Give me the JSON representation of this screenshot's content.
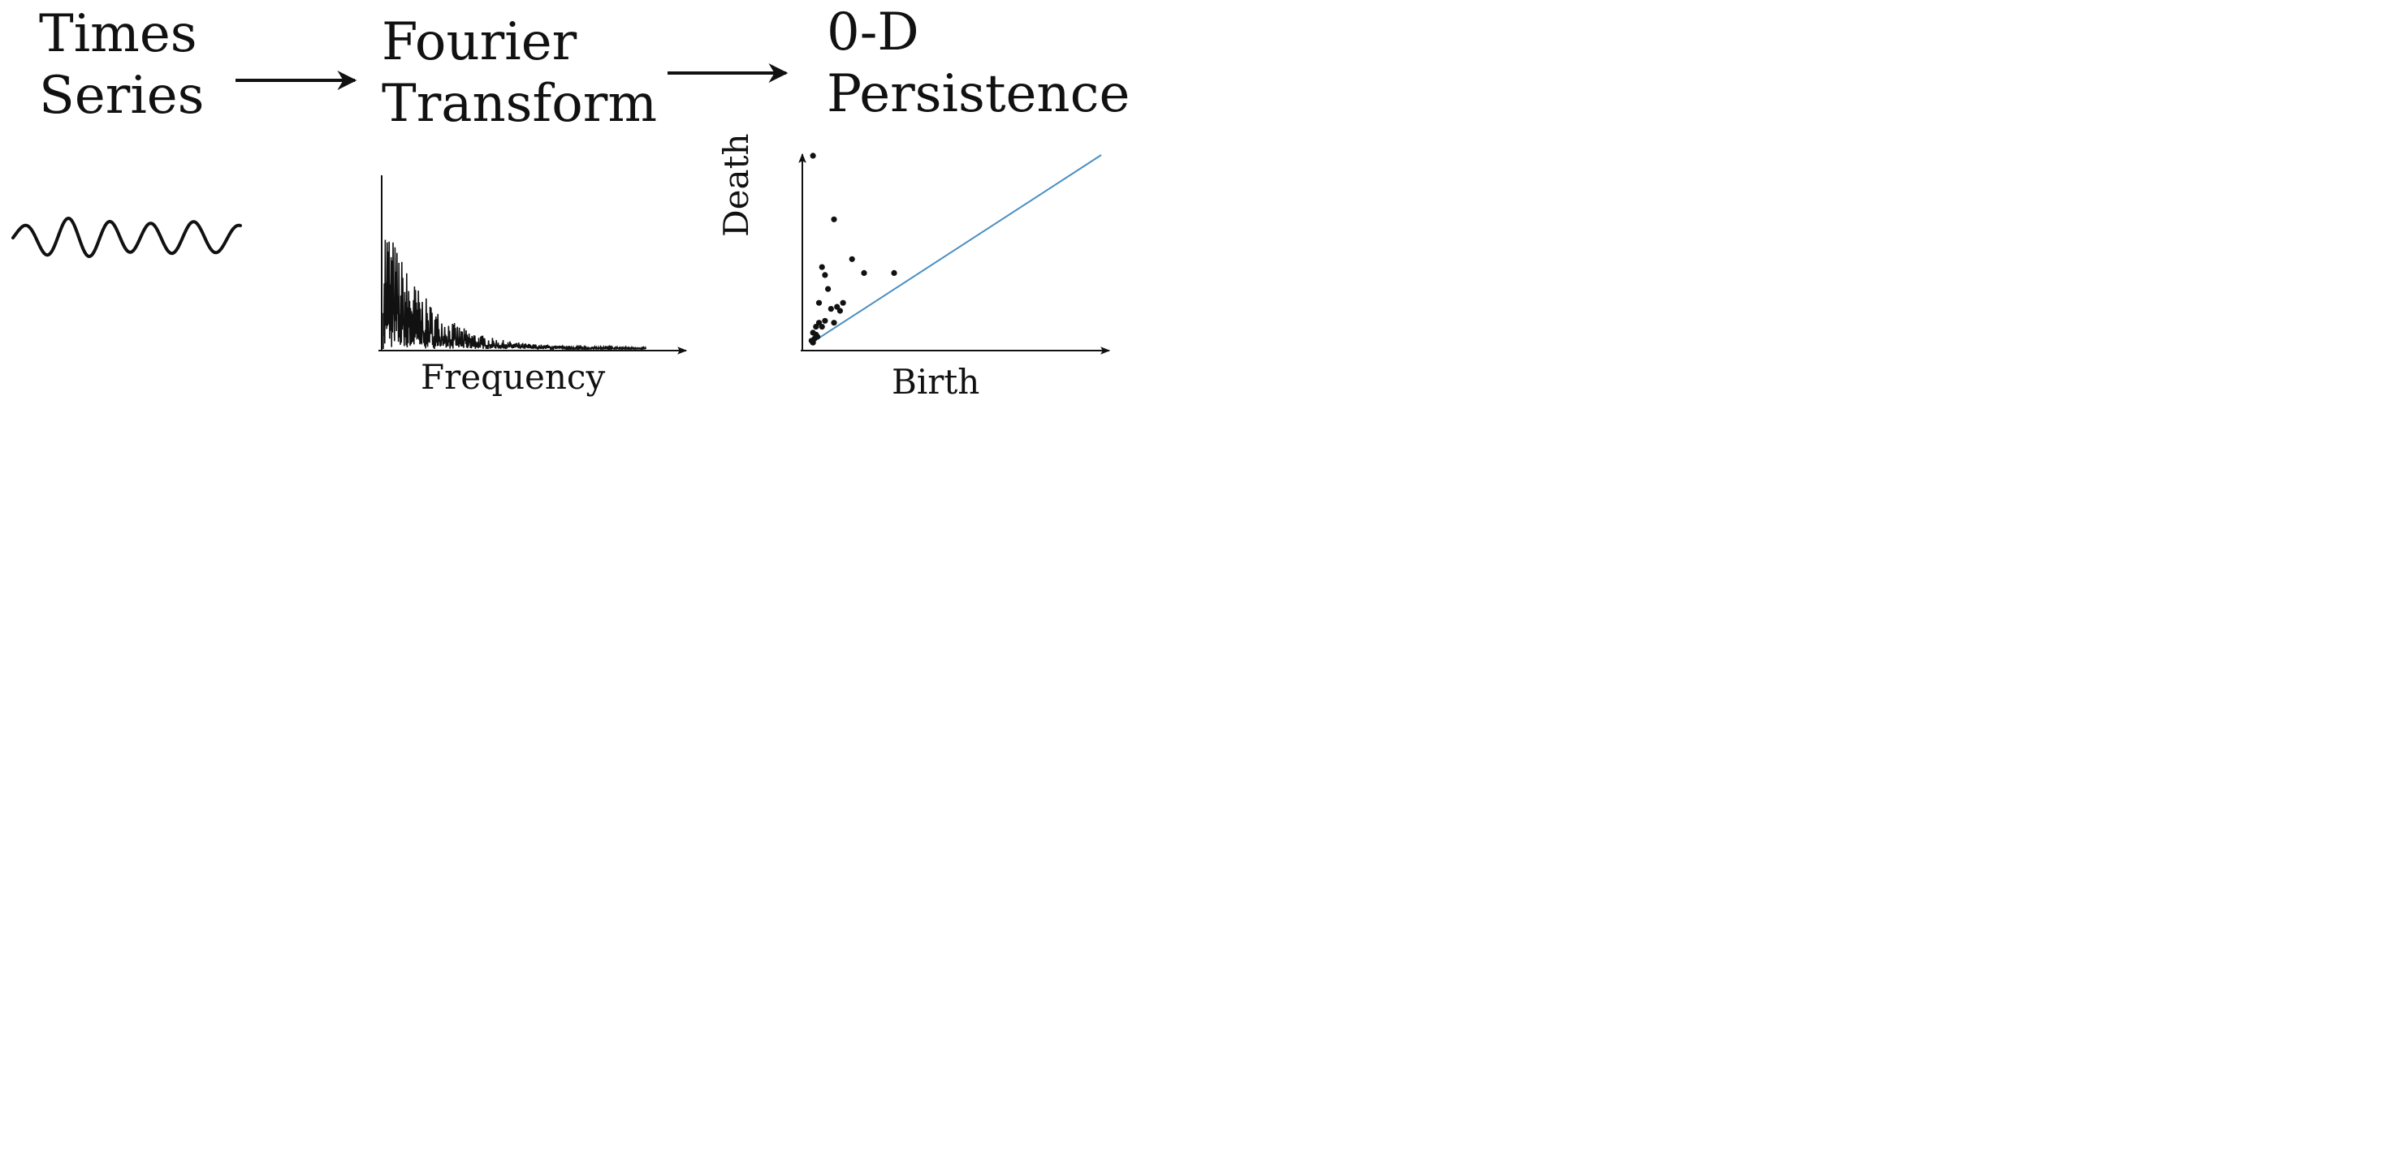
{
  "pipeline": {
    "stages": [
      {
        "id": "time-series",
        "title_line1": "Times",
        "title_line2": "Series"
      },
      {
        "id": "fourier",
        "title_line1": "Fourier",
        "title_line2": "Transform",
        "xlabel": "Frequency"
      },
      {
        "id": "persistence",
        "title_line1": "0-D",
        "title_line2": "Persistence",
        "xlabel": "Birth",
        "ylabel": "Death"
      }
    ]
  },
  "colors": {
    "ink": "#111111",
    "diagonal": "#4a8fc2"
  },
  "persistence_points": [
    [
      0.03,
      0.98
    ],
    [
      0.1,
      0.66
    ],
    [
      0.16,
      0.46
    ],
    [
      0.2,
      0.39
    ],
    [
      0.06,
      0.42
    ],
    [
      0.07,
      0.38
    ],
    [
      0.08,
      0.31
    ],
    [
      0.05,
      0.24
    ],
    [
      0.13,
      0.24
    ],
    [
      0.11,
      0.22
    ],
    [
      0.12,
      0.2
    ],
    [
      0.09,
      0.21
    ],
    [
      0.07,
      0.15
    ],
    [
      0.05,
      0.14
    ],
    [
      0.06,
      0.12
    ],
    [
      0.04,
      0.12
    ],
    [
      0.03,
      0.09
    ],
    [
      0.04,
      0.08
    ],
    [
      0.035,
      0.06
    ],
    [
      0.045,
      0.07
    ],
    [
      0.025,
      0.05
    ],
    [
      0.03,
      0.04
    ],
    [
      0.1,
      0.14
    ],
    [
      0.3,
      0.39
    ]
  ]
}
